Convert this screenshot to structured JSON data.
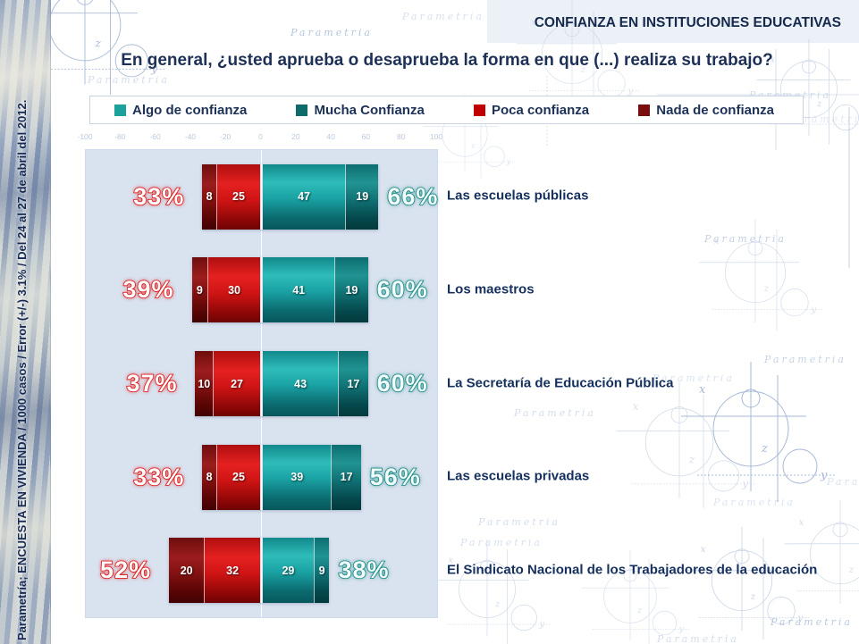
{
  "page": {
    "header": "CONFIANZA EN INSTITUCIONES EDUCATIVAS",
    "title": "En general, ¿usted aprueba o desaprueba la forma en que (...) realiza su trabajo?",
    "sidebar_text": "Parametría; ENCUESTA EN VIVIENDA / 1000 casos / Error (+/-) 3.1% / Del 24 al 27 de abril del 2012.",
    "watermark_text": "Parametria",
    "axis_letters": {
      "x": "x",
      "y": "y",
      "z": "z"
    }
  },
  "colors": {
    "algo": "#1aa29b",
    "mucha": "#0e6b68",
    "poca": "#c00000",
    "nada": "#7a0e0e",
    "pct_red": "#e01515",
    "pct_teal": "#148a85",
    "navy": "#1d3157",
    "panel_bg": "#d9e2ef"
  },
  "legend": [
    {
      "label": "Algo de confianza",
      "color": "#1aa29b"
    },
    {
      "label": "Mucha Confianza",
      "color": "#0e6b68"
    },
    {
      "label": "Poca confianza",
      "color": "#c00000"
    },
    {
      "label": "Nada de confianza",
      "color": "#7a0e0e"
    }
  ],
  "chart_data": {
    "type": "bar",
    "subtype": "horizontal-diverging-stacked",
    "title": "En general, ¿usted aprueba o desaprueba la forma en que (...) realiza su trabajo?",
    "legend_position": "top",
    "grid": false,
    "x_axis": {
      "min": -100,
      "max": 100,
      "ticks": [
        -100,
        -80,
        -60,
        -40,
        -20,
        0,
        20,
        40,
        60,
        80,
        100
      ]
    },
    "categories": [
      "Las escuelas públicas",
      "Los maestros",
      "La Secretaría de Educación Pública",
      "Las escuelas privadas",
      "El Sindicato Nacional de los Trabajadores de la educación"
    ],
    "series": [
      {
        "name": "Nada de confianza",
        "side": "negative",
        "values": [
          8,
          9,
          10,
          8,
          20
        ]
      },
      {
        "name": "Poca confianza",
        "side": "negative",
        "values": [
          25,
          30,
          27,
          25,
          32
        ]
      },
      {
        "name": "Algo de confianza",
        "side": "positive",
        "values": [
          47,
          41,
          43,
          39,
          29
        ]
      },
      {
        "name": "Mucha Confianza",
        "side": "positive",
        "values": [
          19,
          19,
          17,
          17,
          9
        ]
      }
    ],
    "rows": [
      {
        "category": "Las escuelas públicas",
        "nada": 8,
        "poca": 25,
        "algo": 47,
        "mucha": 19,
        "total_desconfianza": "33%",
        "total_confianza": "66%"
      },
      {
        "category": "Los maestros",
        "nada": 9,
        "poca": 30,
        "algo": 41,
        "mucha": 19,
        "total_desconfianza": "39%",
        "total_confianza": "60%"
      },
      {
        "category": "La Secretaría de Educación Pública",
        "nada": 10,
        "poca": 27,
        "algo": 43,
        "mucha": 17,
        "total_desconfianza": "37%",
        "total_confianza": "60%"
      },
      {
        "category": "Las escuelas privadas",
        "nada": 8,
        "poca": 25,
        "algo": 39,
        "mucha": 17,
        "total_desconfianza": "33%",
        "total_confianza": "56%"
      },
      {
        "category": "El Sindicato Nacional de los Trabajadores de la educación",
        "nada": 20,
        "poca": 32,
        "algo": 29,
        "mucha": 9,
        "total_desconfianza": "52%",
        "total_confianza": "38%"
      }
    ]
  }
}
